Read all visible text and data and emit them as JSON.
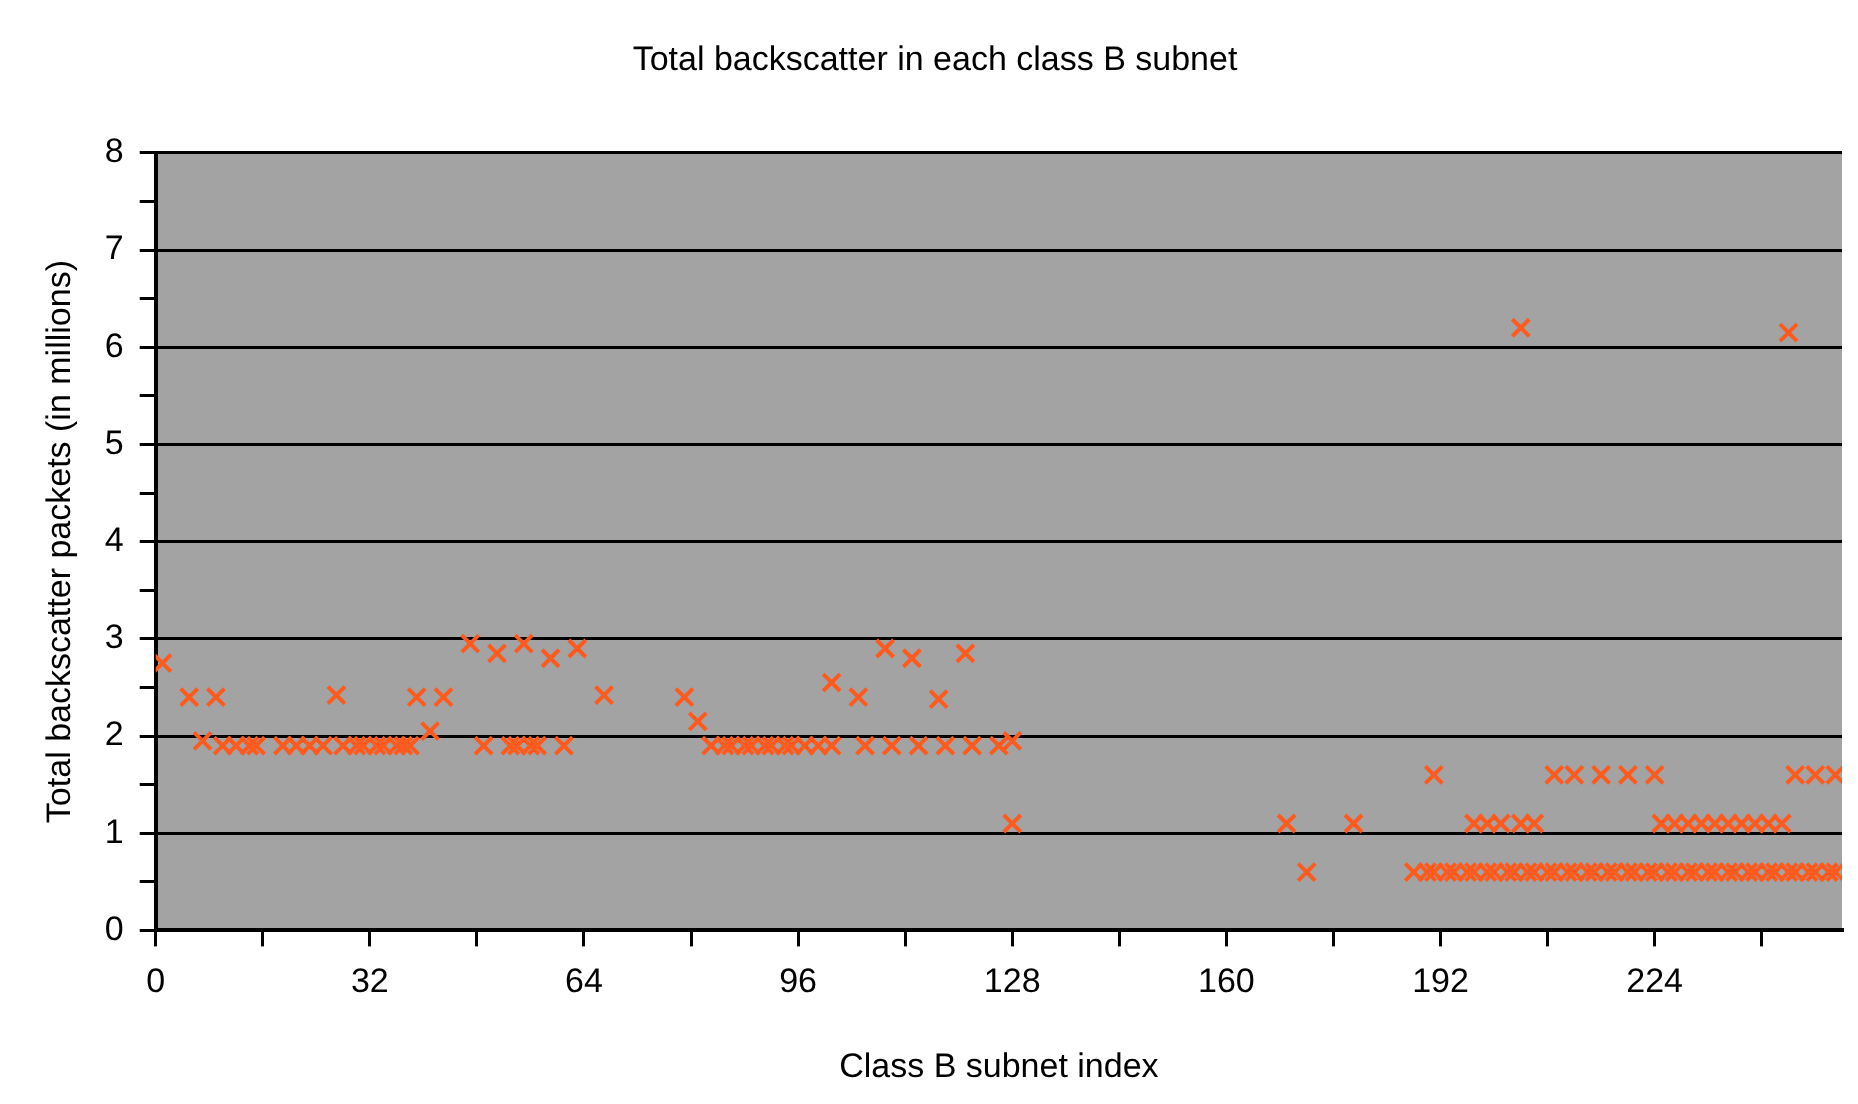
{
  "chart_data": {
    "type": "scatter",
    "title": "Total backscatter in each class B subnet",
    "xlabel": "Class B subnet index",
    "ylabel": "Total backscatter packets (in millions)",
    "xlim": [
      0,
      252
    ],
    "xticks": [
      0,
      {
        "value": 16,
        "label": null
      },
      32,
      {
        "value": 48,
        "label": null
      },
      64,
      {
        "value": 80,
        "label": null
      },
      96,
      {
        "value": 112,
        "label": null
      },
      128,
      {
        "value": 144,
        "label": null
      },
      160,
      {
        "value": 176,
        "label": null
      },
      192,
      {
        "value": 208,
        "label": null
      },
      224,
      {
        "value": 240,
        "label": null
      }
    ],
    "ylim": [
      0,
      8
    ],
    "yticks": [
      0,
      {
        "value": 0.5,
        "label": null
      },
      1,
      {
        "value": 1.5,
        "label": null
      },
      2,
      {
        "value": 2.5,
        "label": null
      },
      3,
      {
        "value": 3.5,
        "label": null
      },
      4,
      {
        "value": 4.5,
        "label": null
      },
      5,
      {
        "value": 5.5,
        "label": null
      },
      6,
      {
        "value": 6.5,
        "label": null
      },
      7,
      {
        "value": 7.5,
        "label": null
      },
      8
    ],
    "grid": "y",
    "marker": "cross",
    "legend": false,
    "series": [
      {
        "color": "#ff5a1e",
        "x": [
          1,
          5,
          9,
          27,
          39,
          43,
          41,
          67,
          79,
          81,
          47,
          51,
          55,
          59,
          63,
          101,
          105,
          109,
          113,
          117,
          121,
          128,
          169,
          172,
          179,
          191,
          204,
          244,
          7,
          10,
          12,
          14,
          15,
          19,
          21,
          23,
          25,
          28,
          30,
          31,
          33,
          34,
          36,
          37,
          38,
          49,
          53,
          54,
          56,
          57,
          61,
          83,
          85,
          86,
          88,
          89,
          91,
          92,
          94,
          95,
          97,
          99,
          101,
          106,
          110,
          114,
          118,
          122,
          126,
          128,
          188,
          190,
          191,
          193,
          194,
          196,
          197,
          199,
          200,
          202,
          203,
          205,
          206,
          208,
          209,
          211,
          212,
          214,
          215,
          217,
          218,
          220,
          221,
          223,
          224,
          226,
          227,
          229,
          230,
          232,
          233,
          235,
          236,
          238,
          239,
          241,
          242,
          244,
          245,
          247,
          248,
          250,
          251,
          197,
          199,
          201,
          204,
          206,
          225,
          227,
          229,
          231,
          233,
          235,
          237,
          239,
          241,
          243,
          209,
          212,
          216,
          220,
          224,
          245,
          248,
          251
        ],
        "values": [
          2.75,
          2.4,
          2.4,
          2.42,
          2.4,
          2.4,
          2.05,
          2.42,
          2.4,
          2.15,
          2.95,
          2.85,
          2.95,
          2.8,
          2.9,
          2.55,
          2.4,
          2.9,
          2.8,
          2.38,
          2.85,
          1.1,
          1.1,
          0.6,
          1.1,
          1.6,
          6.2,
          6.15,
          1.95,
          1.9,
          1.9,
          1.9,
          1.9,
          1.9,
          1.9,
          1.9,
          1.9,
          1.9,
          1.9,
          1.9,
          1.9,
          1.9,
          1.9,
          1.9,
          1.9,
          1.9,
          1.9,
          1.9,
          1.9,
          1.9,
          1.9,
          1.9,
          1.9,
          1.9,
          1.9,
          1.9,
          1.9,
          1.9,
          1.9,
          1.9,
          1.9,
          1.9,
          1.9,
          1.9,
          1.9,
          1.9,
          1.9,
          1.9,
          1.9,
          1.95,
          0.6,
          0.6,
          0.6,
          0.6,
          0.6,
          0.6,
          0.6,
          0.6,
          0.6,
          0.6,
          0.6,
          0.6,
          0.6,
          0.6,
          0.6,
          0.6,
          0.6,
          0.6,
          0.6,
          0.6,
          0.6,
          0.6,
          0.6,
          0.6,
          0.6,
          0.6,
          0.6,
          0.6,
          0.6,
          0.6,
          0.6,
          0.6,
          0.6,
          0.6,
          0.6,
          0.6,
          0.6,
          0.6,
          0.6,
          0.6,
          0.6,
          0.6,
          0.6,
          1.1,
          1.1,
          1.1,
          1.1,
          1.1,
          1.1,
          1.1,
          1.1,
          1.1,
          1.1,
          1.1,
          1.1,
          1.1,
          1.1,
          1.1,
          1.6,
          1.6,
          1.6,
          1.6,
          1.6,
          1.6,
          1.6,
          1.6
        ]
      }
    ]
  }
}
